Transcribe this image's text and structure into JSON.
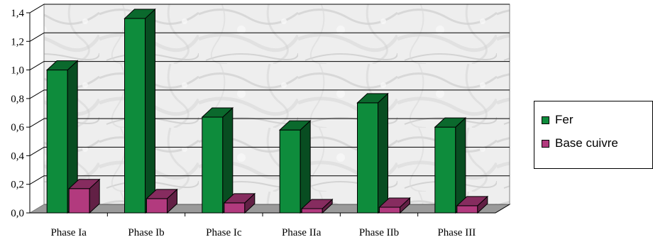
{
  "chart_data": {
    "type": "bar",
    "categories": [
      "Phase Ia",
      "Phase Ib",
      "Phase Ic",
      "Phase IIa",
      "Phase IIb",
      "Phase III"
    ],
    "series": [
      {
        "name": "Fer",
        "values": [
          1.0,
          1.36,
          0.67,
          0.58,
          0.77,
          0.6
        ],
        "color": "#0e8c3c"
      },
      {
        "name": "Base cuivre",
        "values": [
          0.17,
          0.1,
          0.07,
          0.03,
          0.04,
          0.05
        ],
        "color": "#b23a7e"
      }
    ],
    "yticks": [
      "0,0",
      "0,2",
      "0,4",
      "0,6",
      "0,8",
      "1,0",
      "1,2",
      "1,4"
    ],
    "ylim": [
      0,
      1.4
    ],
    "grid": true,
    "legend_position": "right",
    "title": "",
    "xlabel": "",
    "ylabel": ""
  }
}
